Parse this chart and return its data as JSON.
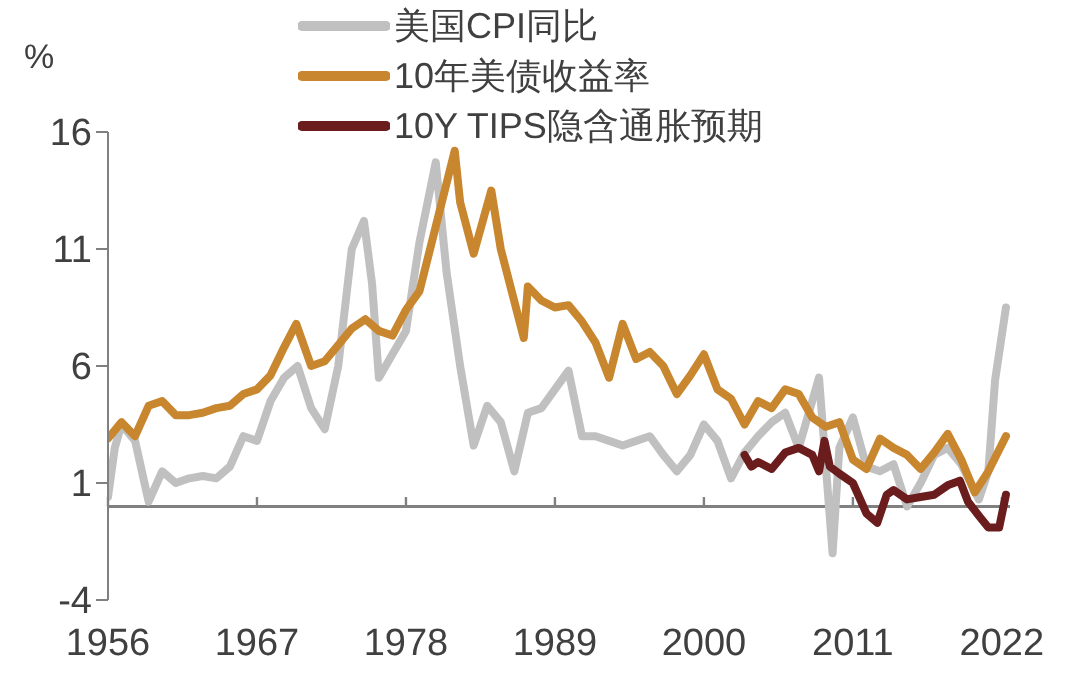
{
  "chart_data": {
    "type": "line",
    "ylabel": "%",
    "xlim": [
      1956,
      2022.6
    ],
    "xticks": [
      1956,
      1967,
      1978,
      1989,
      2000,
      2011,
      2022
    ],
    "ylim": [
      -4,
      16
    ],
    "yticks": [
      -4,
      1,
      6,
      11,
      16
    ],
    "grid": false,
    "legend": "top",
    "line_style": "solid",
    "marker": "none",
    "ref_lines": [
      {
        "axis": "y",
        "value": 0,
        "color": "#808080"
      }
    ],
    "series": [
      {
        "name": "美国CPI同比",
        "color": "#c0c0c0",
        "x": [
          1956,
          1956.5,
          1957,
          1958,
          1959,
          1960,
          1961,
          1962,
          1963,
          1964,
          1965,
          1966,
          1967,
          1968,
          1969,
          1970,
          1971,
          1972,
          1973,
          1974,
          1974.9,
          1975.5,
          1976,
          1977,
          1978,
          1979,
          1980.2,
          1981,
          1982,
          1983,
          1984,
          1985,
          1986,
          1987,
          1988,
          1989,
          1990,
          1991,
          1992,
          1993,
          1994,
          1995,
          1996,
          1997,
          1998,
          1999,
          2000,
          2001,
          2002,
          2003,
          2004,
          2005,
          2006,
          2007,
          2008.5,
          2009.5,
          2010,
          2011,
          2012,
          2013,
          2014,
          2015,
          2016,
          2017,
          2018,
          2019,
          2020.3,
          2021,
          2021.5,
          2022.3
        ],
        "values": [
          0.4,
          2.5,
          3.5,
          2.8,
          0.2,
          1.5,
          1.0,
          1.2,
          1.3,
          1.2,
          1.7,
          3.0,
          2.8,
          4.5,
          5.5,
          6.0,
          4.2,
          3.3,
          6.0,
          11.0,
          12.2,
          9.5,
          5.5,
          6.5,
          7.5,
          11.3,
          14.7,
          10.0,
          6.0,
          2.6,
          4.3,
          3.6,
          1.5,
          4.0,
          4.2,
          5.0,
          5.8,
          3.0,
          3.0,
          2.8,
          2.6,
          2.8,
          3.0,
          2.2,
          1.5,
          2.2,
          3.5,
          2.8,
          1.2,
          2.3,
          3.0,
          3.6,
          4.0,
          2.5,
          5.5,
          -2.0,
          2.5,
          3.8,
          1.7,
          1.5,
          1.8,
          0.0,
          1.0,
          2.2,
          2.5,
          1.8,
          0.3,
          1.5,
          5.4,
          8.5
        ]
      },
      {
        "name": "10年美债收益率",
        "color": "#c8862e",
        "x": [
          1956,
          1957,
          1958,
          1959,
          1960,
          1961,
          1962,
          1963,
          1964,
          1965,
          1966,
          1967,
          1968,
          1969,
          1969.9,
          1971,
          1972,
          1973,
          1974,
          1975,
          1976,
          1977,
          1978,
          1979,
          1980,
          1981.6,
          1982,
          1983,
          1984.3,
          1985,
          1986.7,
          1987,
          1988,
          1989,
          1990,
          1991,
          1992,
          1993,
          1994,
          1995,
          1996,
          1997,
          1998,
          1999,
          2000,
          2001,
          2002,
          2003,
          2004,
          2005,
          2006,
          2007,
          2008,
          2009,
          2010,
          2011,
          2012,
          2013,
          2014,
          2015,
          2016,
          2017,
          2018,
          2019,
          2020,
          2021,
          2022.3
        ],
        "values": [
          2.9,
          3.6,
          3.0,
          4.3,
          4.5,
          3.9,
          3.9,
          4.0,
          4.2,
          4.3,
          4.8,
          5.0,
          5.6,
          6.8,
          7.8,
          6.0,
          6.2,
          6.9,
          7.6,
          8.0,
          7.5,
          7.3,
          8.4,
          9.2,
          11.5,
          15.2,
          13.0,
          10.8,
          13.5,
          11.0,
          7.2,
          9.4,
          8.8,
          8.5,
          8.6,
          7.9,
          7.0,
          5.5,
          7.8,
          6.3,
          6.6,
          6.0,
          4.8,
          5.6,
          6.5,
          5.0,
          4.6,
          3.5,
          4.5,
          4.2,
          5.0,
          4.8,
          3.8,
          3.4,
          3.6,
          2.0,
          1.6,
          2.9,
          2.5,
          2.2,
          1.6,
          2.3,
          3.1,
          2.0,
          0.6,
          1.5,
          3.0
        ]
      },
      {
        "name": "10Y TIPS隐含通胀预期",
        "color": "#6b1c1c",
        "x": [
          2003,
          2003.5,
          2004,
          2005,
          2006,
          2007,
          2008,
          2008.5,
          2008.9,
          2009.3,
          2010,
          2011,
          2012,
          2012.8,
          2013.5,
          2014,
          2015,
          2016,
          2017,
          2018,
          2018.9,
          2019.5,
          2020.3,
          2021,
          2021.8,
          2022.3
        ],
        "values": [
          2.2,
          1.7,
          1.9,
          1.6,
          2.3,
          2.5,
          2.2,
          1.5,
          2.8,
          1.7,
          1.4,
          1.0,
          -0.3,
          -0.7,
          0.5,
          0.7,
          0.3,
          0.4,
          0.5,
          0.9,
          1.1,
          0.2,
          -0.4,
          -0.9,
          -0.9,
          0.5
        ]
      }
    ]
  }
}
